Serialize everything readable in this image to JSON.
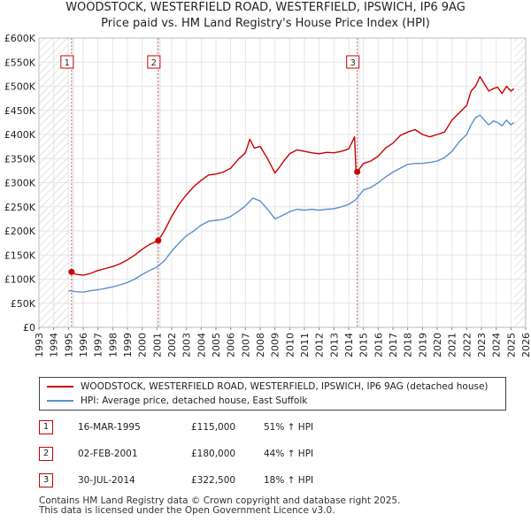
{
  "title_line1": "WOODSTOCK, WESTERFIELD ROAD, WESTERFIELD, IPSWICH, IP6 9AG",
  "title_line2": "Price paid vs. HM Land Registry's House Price Index (HPI)",
  "colors": {
    "property": "#cc0000",
    "hpi": "#5b8fd0",
    "shade": "#dde6f2",
    "marker_line": "#dd6666"
  },
  "chart_data": {
    "type": "line",
    "title": "WOODSTOCK, WESTERFIELD ROAD, WESTERFIELD, IPSWICH, IP6 9AG — Price paid vs. HM Land Registry's House Price Index (HPI)",
    "xlim": [
      1993,
      2026
    ],
    "ylim": [
      0,
      600000
    ],
    "y_ticks": [
      0,
      50000,
      100000,
      150000,
      200000,
      250000,
      300000,
      350000,
      400000,
      450000,
      500000,
      550000,
      600000
    ],
    "y_tick_labels": [
      "£0",
      "£50K",
      "£100K",
      "£150K",
      "£200K",
      "£250K",
      "£300K",
      "£350K",
      "£400K",
      "£450K",
      "£500K",
      "£550K",
      "£600K"
    ],
    "x_ticks": [
      1993,
      1994,
      1995,
      1996,
      1997,
      1998,
      1999,
      2000,
      2001,
      2002,
      2003,
      2004,
      2005,
      2006,
      2007,
      2008,
      2009,
      2010,
      2011,
      2012,
      2013,
      2014,
      2015,
      2016,
      2017,
      2018,
      2019,
      2020,
      2021,
      2022,
      2023,
      2024,
      2025,
      2026
    ],
    "x_tick_labels": [
      "1993",
      "1994",
      "1995",
      "1996",
      "1997",
      "1998",
      "1999",
      "2000",
      "2001",
      "2002",
      "2003",
      "2004",
      "2005",
      "2006",
      "2007",
      "2008",
      "2009",
      "2010",
      "2011",
      "2012",
      "2013",
      "2014",
      "2015",
      "2016",
      "2017",
      "2018",
      "2019",
      "2020",
      "2021",
      "2022",
      "2023",
      "2024",
      "2025",
      "2026"
    ],
    "hatched_ranges": [
      [
        1993,
        1995.0
      ],
      [
        2025.2,
        2026
      ]
    ],
    "grid": true,
    "series": [
      {
        "name": "WOODSTOCK, WESTERFIELD ROAD, WESTERFIELD, IPSWICH, IP6 9AG (detached house)",
        "color": "#cc0000",
        "x": [
          1995.21,
          1995.5,
          1996.0,
          1996.5,
          1997.0,
          1997.5,
          1998.0,
          1998.5,
          1999.0,
          1999.5,
          2000.0,
          2000.5,
          2001.09,
          2001.5,
          2002.0,
          2002.5,
          2003.0,
          2003.5,
          2004.0,
          2004.5,
          2005.0,
          2005.5,
          2006.0,
          2006.5,
          2007.0,
          2007.3,
          2007.6,
          2008.0,
          2008.5,
          2009.0,
          2009.3,
          2009.6,
          2010.0,
          2010.5,
          2011.0,
          2011.5,
          2012.0,
          2012.5,
          2013.0,
          2013.5,
          2014.0,
          2014.4,
          2014.5,
          2014.58,
          2015.0,
          2015.5,
          2016.0,
          2016.5,
          2017.0,
          2017.5,
          2018.0,
          2018.5,
          2019.0,
          2019.5,
          2020.0,
          2020.5,
          2021.0,
          2021.5,
          2022.0,
          2022.3,
          2022.6,
          2022.9,
          2023.2,
          2023.5,
          2023.8,
          2024.1,
          2024.4,
          2024.7,
          2025.0,
          2025.2
        ],
        "values": [
          115000,
          110000,
          108000,
          112000,
          118000,
          122000,
          126000,
          132000,
          140000,
          150000,
          162000,
          172000,
          180000,
          200000,
          230000,
          255000,
          275000,
          292000,
          305000,
          316000,
          318000,
          322000,
          330000,
          348000,
          362000,
          390000,
          372000,
          375000,
          350000,
          320000,
          332000,
          345000,
          360000,
          368000,
          365000,
          362000,
          360000,
          363000,
          362000,
          365000,
          370000,
          395000,
          320000,
          322500,
          340000,
          345000,
          355000,
          372000,
          382000,
          398000,
          405000,
          410000,
          400000,
          395000,
          400000,
          405000,
          430000,
          445000,
          460000,
          490000,
          500000,
          520000,
          505000,
          490000,
          495000,
          498000,
          485000,
          500000,
          490000,
          495000
        ]
      },
      {
        "name": "HPI: Average price, detached house, East Suffolk",
        "color": "#5b8fd0",
        "x": [
          1995.0,
          1995.5,
          1996.0,
          1996.5,
          1997.0,
          1997.5,
          1998.0,
          1998.5,
          1999.0,
          1999.5,
          2000.0,
          2000.5,
          2001.0,
          2001.5,
          2002.0,
          2002.5,
          2003.0,
          2003.5,
          2004.0,
          2004.5,
          2005.0,
          2005.5,
          2006.0,
          2006.5,
          2007.0,
          2007.5,
          2008.0,
          2008.5,
          2009.0,
          2009.5,
          2010.0,
          2010.5,
          2011.0,
          2011.5,
          2012.0,
          2012.5,
          2013.0,
          2013.5,
          2014.0,
          2014.5,
          2015.0,
          2015.5,
          2016.0,
          2016.5,
          2017.0,
          2017.5,
          2018.0,
          2018.5,
          2019.0,
          2019.5,
          2020.0,
          2020.5,
          2021.0,
          2021.5,
          2022.0,
          2022.3,
          2022.6,
          2022.9,
          2023.2,
          2023.5,
          2023.8,
          2024.1,
          2024.4,
          2024.7,
          2025.0,
          2025.2
        ],
        "values": [
          76000,
          74000,
          73000,
          76000,
          78000,
          81000,
          84000,
          88000,
          93000,
          100000,
          110000,
          118000,
          125000,
          138000,
          158000,
          175000,
          190000,
          200000,
          212000,
          220000,
          222000,
          224000,
          230000,
          240000,
          252000,
          268000,
          262000,
          245000,
          225000,
          232000,
          240000,
          245000,
          243000,
          245000,
          243000,
          245000,
          246000,
          250000,
          255000,
          265000,
          285000,
          290000,
          300000,
          312000,
          322000,
          330000,
          338000,
          340000,
          340000,
          342000,
          345000,
          352000,
          365000,
          385000,
          400000,
          420000,
          435000,
          440000,
          430000,
          420000,
          428000,
          425000,
          418000,
          430000,
          420000,
          425000
        ]
      }
    ],
    "markers": [
      {
        "label": "1",
        "x": 1995.21,
        "value": 115000
      },
      {
        "label": "2",
        "x": 2001.09,
        "value": 180000
      },
      {
        "label": "3",
        "x": 2014.58,
        "value": 322500
      }
    ]
  },
  "legend": {
    "property_label": "WOODSTOCK, WESTERFIELD ROAD, WESTERFIELD, IPSWICH, IP6 9AG (detached house)",
    "hpi_label": "HPI: Average price, detached house, East Suffolk"
  },
  "transactions": [
    {
      "num": "1",
      "date": "16-MAR-1995",
      "price": "£115,000",
      "hpi": "51% ↑ HPI"
    },
    {
      "num": "2",
      "date": "02-FEB-2001",
      "price": "£180,000",
      "hpi": "44% ↑ HPI"
    },
    {
      "num": "3",
      "date": "30-JUL-2014",
      "price": "£322,500",
      "hpi": "18% ↑ HPI"
    }
  ],
  "footer_line1": "Contains HM Land Registry data © Crown copyright and database right 2025.",
  "footer_line2": "This data is licensed under the Open Government Licence v3.0."
}
